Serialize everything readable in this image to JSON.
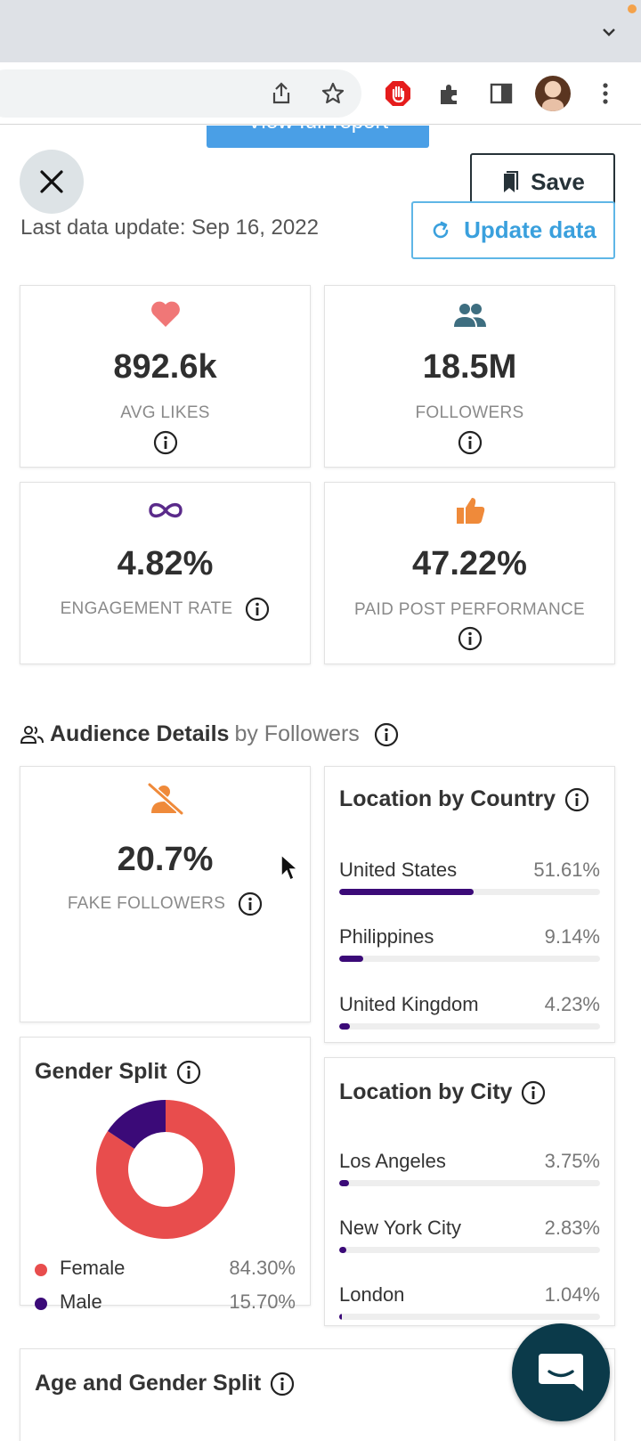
{
  "browser": {
    "accent_dot_color": "#f4a24b",
    "toolbar_icons": [
      "share-icon",
      "star-icon",
      "adblock-icon",
      "extensions-icon",
      "side-panel-icon",
      "profile-avatar",
      "more-menu-icon"
    ]
  },
  "header": {
    "view_report_label": "View full report",
    "save_label": "Save",
    "update_label": "Update data",
    "last_update": "Last data update: Sep 16, 2022"
  },
  "stats": {
    "avg_likes": {
      "value": "892.6k",
      "label": "AVG LIKES",
      "icon": "heart-icon",
      "color": "#f07777"
    },
    "followers": {
      "value": "18.5M",
      "label": "FOLLOWERS",
      "icon": "users-icon",
      "color": "#3e6e80"
    },
    "engagement": {
      "value": "4.82%",
      "label": "ENGAGEMENT RATE",
      "icon": "infinity-icon",
      "color": "#5a2a8a"
    },
    "paid_post": {
      "value": "47.22%",
      "label": "PAID POST PERFORMANCE",
      "icon": "thumbs-up-icon",
      "color": "#ef8a3a"
    }
  },
  "audience": {
    "title": "Audience Details",
    "subtitle": "by Followers",
    "fake_followers": {
      "value": "20.7%",
      "label": "FAKE FOLLOWERS",
      "icon": "user-slash-icon",
      "color": "#ef8a3a"
    },
    "location_country": {
      "title": "Location by Country",
      "items": [
        {
          "name": "United States",
          "pct_label": "51.61%",
          "pct": 51.61
        },
        {
          "name": "Philippines",
          "pct_label": "9.14%",
          "pct": 9.14
        },
        {
          "name": "United Kingdom",
          "pct_label": "4.23%",
          "pct": 4.23
        }
      ]
    },
    "location_city": {
      "title": "Location by City",
      "items": [
        {
          "name": "Los Angeles",
          "pct_label": "3.75%",
          "pct": 3.75
        },
        {
          "name": "New York City",
          "pct_label": "2.83%",
          "pct": 2.83
        },
        {
          "name": "London",
          "pct_label": "1.04%",
          "pct": 1.04
        }
      ]
    },
    "gender_split": {
      "title": "Gender Split",
      "items": [
        {
          "name": "Female",
          "pct_label": "84.30%",
          "pct": 84.3,
          "color": "#e84d4d"
        },
        {
          "name": "Male",
          "pct_label": "15.70%",
          "pct": 15.7,
          "color": "#3b0a78"
        }
      ]
    },
    "age_gender_title": "Age and Gender Split"
  },
  "colors": {
    "bar_fill": "#3b0a78",
    "update_accent": "#3aa0dd",
    "chat_bg": "#0b3a4a"
  }
}
